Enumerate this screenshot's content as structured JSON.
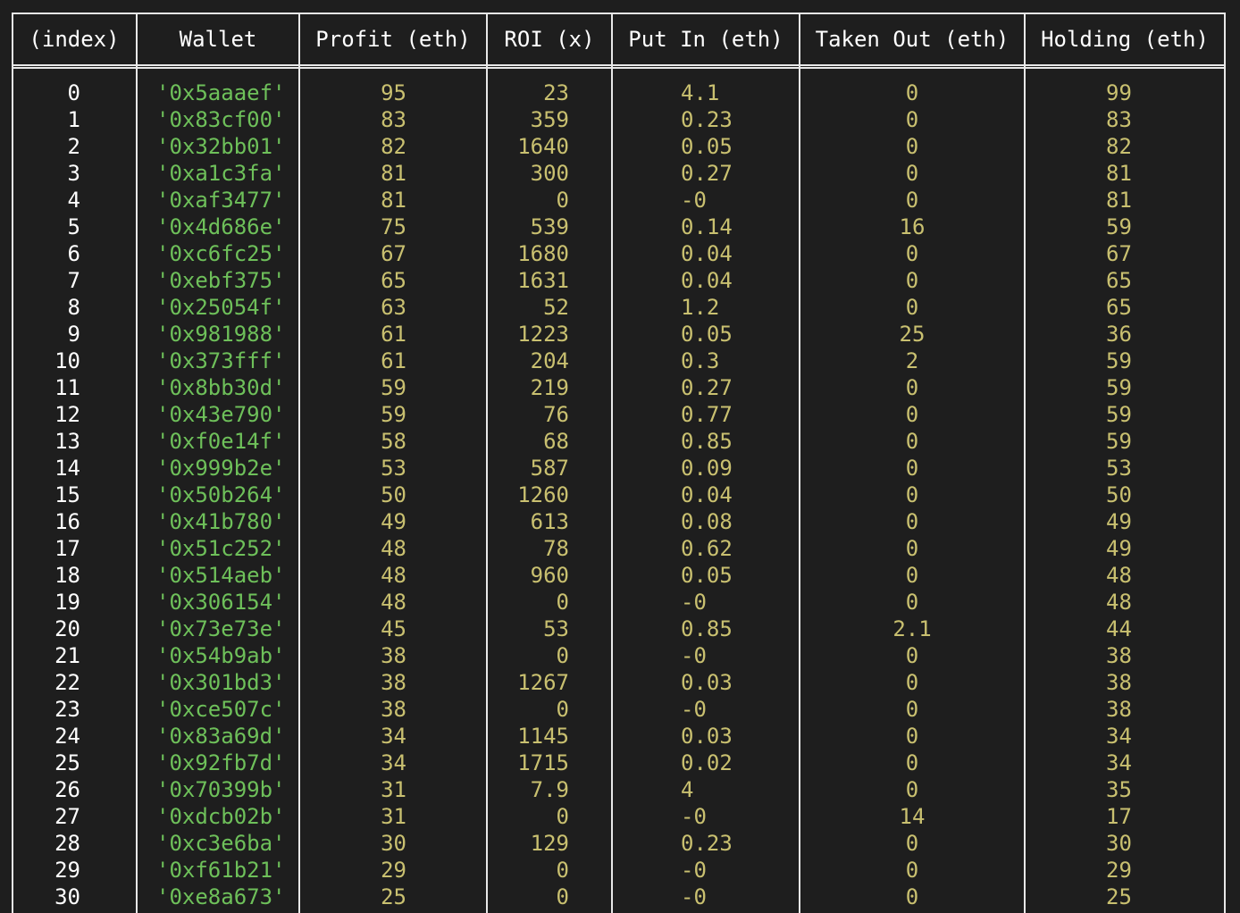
{
  "table": {
    "headers": [
      "(index)",
      "Wallet",
      "Profit (eth)",
      "ROI (x)",
      "Put In (eth)",
      "Taken Out (eth)",
      "Holding (eth)"
    ],
    "rows": [
      [
        "0",
        "'0x5aaaef'",
        "95",
        "23",
        "4.1",
        "0",
        "99"
      ],
      [
        "1",
        "'0x83cf00'",
        "83",
        "359",
        "0.23",
        "0",
        "83"
      ],
      [
        "2",
        "'0x32bb01'",
        "82",
        "1640",
        "0.05",
        "0",
        "82"
      ],
      [
        "3",
        "'0xa1c3fa'",
        "81",
        "300",
        "0.27",
        "0",
        "81"
      ],
      [
        "4",
        "'0xaf3477'",
        "81",
        "0",
        "-0",
        "0",
        "81"
      ],
      [
        "5",
        "'0x4d686e'",
        "75",
        "539",
        "0.14",
        "16",
        "59"
      ],
      [
        "6",
        "'0xc6fc25'",
        "67",
        "1680",
        "0.04",
        "0",
        "67"
      ],
      [
        "7",
        "'0xebf375'",
        "65",
        "1631",
        "0.04",
        "0",
        "65"
      ],
      [
        "8",
        "'0x25054f'",
        "63",
        "52",
        "1.2",
        "0",
        "65"
      ],
      [
        "9",
        "'0x981988'",
        "61",
        "1223",
        "0.05",
        "25",
        "36"
      ],
      [
        "10",
        "'0x373fff'",
        "61",
        "204",
        "0.3",
        "2",
        "59"
      ],
      [
        "11",
        "'0x8bb30d'",
        "59",
        "219",
        "0.27",
        "0",
        "59"
      ],
      [
        "12",
        "'0x43e790'",
        "59",
        "76",
        "0.77",
        "0",
        "59"
      ],
      [
        "13",
        "'0xf0e14f'",
        "58",
        "68",
        "0.85",
        "0",
        "59"
      ],
      [
        "14",
        "'0x999b2e'",
        "53",
        "587",
        "0.09",
        "0",
        "53"
      ],
      [
        "15",
        "'0x50b264'",
        "50",
        "1260",
        "0.04",
        "0",
        "50"
      ],
      [
        "16",
        "'0x41b780'",
        "49",
        "613",
        "0.08",
        "0",
        "49"
      ],
      [
        "17",
        "'0x51c252'",
        "48",
        "78",
        "0.62",
        "0",
        "49"
      ],
      [
        "18",
        "'0x514aeb'",
        "48",
        "960",
        "0.05",
        "0",
        "48"
      ],
      [
        "19",
        "'0x306154'",
        "48",
        "0",
        "-0",
        "0",
        "48"
      ],
      [
        "20",
        "'0x73e73e'",
        "45",
        "53",
        "0.85",
        "2.1",
        "44"
      ],
      [
        "21",
        "'0x54b9ab'",
        "38",
        "0",
        "-0",
        "0",
        "38"
      ],
      [
        "22",
        "'0x301bd3'",
        "38",
        "1267",
        "0.03",
        "0",
        "38"
      ],
      [
        "23",
        "'0xce507c'",
        "38",
        "0",
        "-0",
        "0",
        "38"
      ],
      [
        "24",
        "'0x83a69d'",
        "34",
        "1145",
        "0.03",
        "0",
        "34"
      ],
      [
        "25",
        "'0x92fb7d'",
        "34",
        "1715",
        "0.02",
        "0",
        "34"
      ],
      [
        "26",
        "'0x70399b'",
        "31",
        "7.9",
        "4",
        "0",
        "35"
      ],
      [
        "27",
        "'0xdcb02b'",
        "31",
        "0",
        "-0",
        "14",
        "17"
      ],
      [
        "28",
        "'0xc3e6ba'",
        "30",
        "129",
        "0.23",
        "0",
        "30"
      ],
      [
        "29",
        "'0xf61b21'",
        "29",
        "0",
        "-0",
        "0",
        "29"
      ],
      [
        "30",
        "'0xe8a673'",
        "25",
        "0",
        "-0",
        "0",
        "25"
      ]
    ]
  },
  "colors": {
    "background": "#1e1e1e",
    "border": "#e8e8e8",
    "index_text": "#ffffff",
    "wallet_text": "#6ec05a",
    "number_text": "#c9c070"
  }
}
